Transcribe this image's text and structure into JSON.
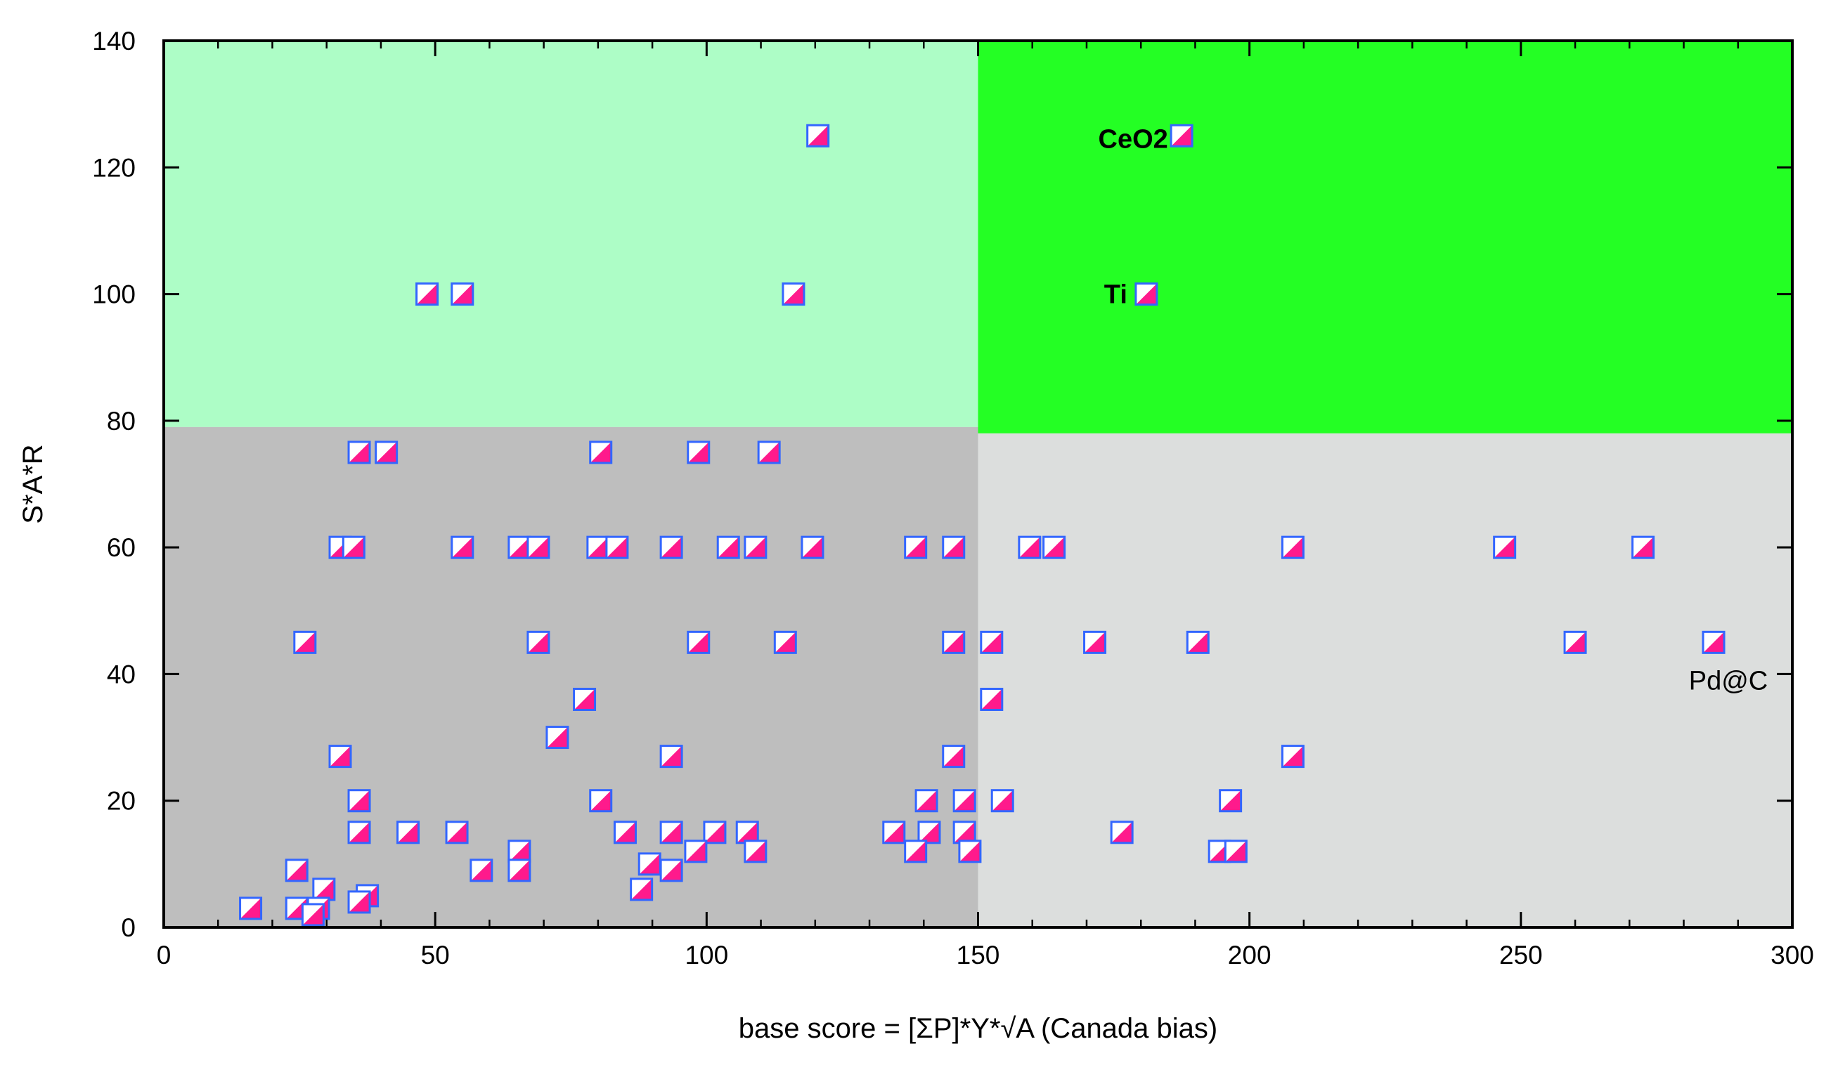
{
  "chart_data": {
    "type": "scatter",
    "xlabel": "base score = [ΣP]*Y*√A (Canada bias)",
    "ylabel": "S*A*R",
    "xlim": [
      0,
      300
    ],
    "ylim": [
      0,
      140
    ],
    "x_ticks": [
      "0",
      "50",
      "100",
      "150",
      "200",
      "250",
      "300"
    ],
    "y_ticks": [
      "0",
      "20",
      "40",
      "60",
      "80",
      "100",
      "120",
      "140"
    ],
    "x_tick_values": [
      0,
      50,
      100,
      150,
      200,
      250,
      300
    ],
    "y_tick_values": [
      0,
      20,
      40,
      60,
      80,
      100,
      120,
      140
    ],
    "grid": false,
    "regions": [
      {
        "x": [
          0,
          150
        ],
        "y": [
          79,
          140
        ],
        "color": "#adfdc6"
      },
      {
        "x": [
          150,
          300
        ],
        "y": [
          78,
          140
        ],
        "color": "#24ff24"
      },
      {
        "x": [
          0,
          150
        ],
        "y": [
          0,
          79
        ],
        "color": "#bebebe"
      },
      {
        "x": [
          150,
          300
        ],
        "y": [
          0,
          78
        ],
        "color": "#dcdedd"
      }
    ],
    "marker_colors": {
      "border": "#3366ff",
      "fill_a": "#ff1a8c",
      "fill_b": "#ffffff"
    },
    "points": [
      [
        120.5,
        125
      ],
      [
        187.5,
        125
      ],
      [
        48.5,
        100
      ],
      [
        55,
        100
      ],
      [
        116,
        100
      ],
      [
        181,
        100
      ],
      [
        36,
        75
      ],
      [
        41,
        75
      ],
      [
        80.5,
        75
      ],
      [
        98.5,
        75
      ],
      [
        111.5,
        75
      ],
      [
        32.5,
        60
      ],
      [
        35,
        60
      ],
      [
        55,
        60
      ],
      [
        65.5,
        60
      ],
      [
        69,
        60
      ],
      [
        80,
        60
      ],
      [
        83.5,
        60
      ],
      [
        93.5,
        60
      ],
      [
        104,
        60
      ],
      [
        109,
        60
      ],
      [
        119.5,
        60
      ],
      [
        138.5,
        60
      ],
      [
        145.5,
        60
      ],
      [
        159.5,
        60
      ],
      [
        164,
        60
      ],
      [
        208,
        60
      ],
      [
        247,
        60
      ],
      [
        272.5,
        60
      ],
      [
        26,
        45
      ],
      [
        69,
        45
      ],
      [
        98.5,
        45
      ],
      [
        114.5,
        45
      ],
      [
        145.5,
        45
      ],
      [
        152.5,
        45
      ],
      [
        171.5,
        45
      ],
      [
        190.5,
        45
      ],
      [
        260,
        45
      ],
      [
        285.5,
        45
      ],
      [
        77.5,
        36
      ],
      [
        152.5,
        36
      ],
      [
        32.5,
        27
      ],
      [
        93.5,
        27
      ],
      [
        145.5,
        27
      ],
      [
        208,
        27
      ],
      [
        72.5,
        30
      ],
      [
        36,
        20
      ],
      [
        80.5,
        20
      ],
      [
        140.5,
        20
      ],
      [
        147.5,
        20
      ],
      [
        154.5,
        20
      ],
      [
        196.5,
        20
      ],
      [
        36,
        15
      ],
      [
        45,
        15
      ],
      [
        54,
        15
      ],
      [
        85,
        15
      ],
      [
        93.5,
        15
      ],
      [
        101.5,
        15
      ],
      [
        107.5,
        15
      ],
      [
        134.5,
        15
      ],
      [
        141,
        15
      ],
      [
        147.5,
        15
      ],
      [
        176.5,
        15
      ],
      [
        65.5,
        12
      ],
      [
        98,
        12
      ],
      [
        109,
        12
      ],
      [
        138.5,
        12
      ],
      [
        148.5,
        12
      ],
      [
        194.5,
        12
      ],
      [
        197.5,
        12
      ],
      [
        24.5,
        9
      ],
      [
        58.5,
        9
      ],
      [
        65.5,
        9
      ],
      [
        89.5,
        10
      ],
      [
        93.5,
        9
      ],
      [
        88,
        6
      ],
      [
        29.5,
        6
      ],
      [
        37.5,
        5
      ],
      [
        36,
        4
      ],
      [
        16,
        3
      ],
      [
        24.5,
        3
      ],
      [
        28.5,
        3
      ],
      [
        27.5,
        2
      ]
    ],
    "annotations": [
      {
        "text": "CeO2",
        "x": 185,
        "y": 124.5,
        "style": "bold"
      },
      {
        "text": "Ti",
        "x": 177.5,
        "y": 100,
        "style": "bold"
      },
      {
        "text": "Pd@C",
        "x": 295.5,
        "y": 39,
        "style": "normal"
      }
    ]
  }
}
